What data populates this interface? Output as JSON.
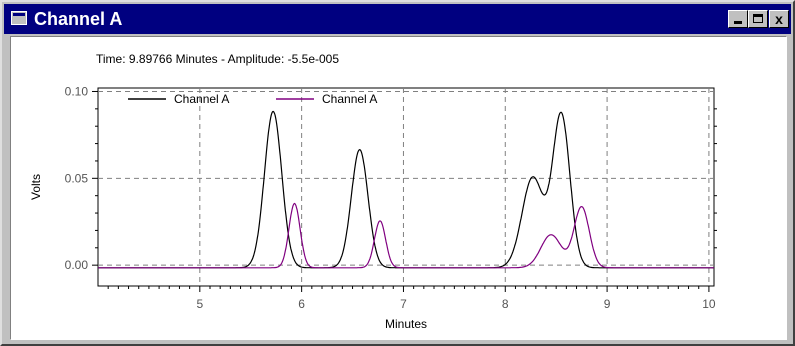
{
  "window": {
    "title": "Channel A",
    "minimize_icon": "minimize-icon",
    "maximize_icon": "maximize-icon",
    "close_icon": "close-icon",
    "close_label": "x"
  },
  "readout": "Time:  9.89766 Minutes - Amplitude:  -5.5e-005",
  "chart_data": {
    "type": "line",
    "xlabel": "Minutes",
    "ylabel": "Volts",
    "xlim": [
      4.0,
      10.05
    ],
    "ylim": [
      -0.012,
      0.102
    ],
    "xticks": [
      "5",
      "6",
      "7",
      "8",
      "9",
      "10"
    ],
    "yticks": [
      "0.00",
      "0.05",
      "0.10"
    ],
    "grid": true,
    "legend_position": "top-left",
    "series": [
      {
        "name": "Channel A",
        "color": "#000000",
        "baseline": -0.0015,
        "peaks": [
          [
            5.72,
            0.09,
            0.085
          ],
          [
            6.57,
            0.068,
            0.082
          ],
          [
            8.27,
            0.052,
            0.105
          ],
          [
            8.55,
            0.088,
            0.085
          ]
        ]
      },
      {
        "name": "Channel A",
        "color": "#800080",
        "baseline": -0.0015,
        "peaks": [
          [
            5.93,
            0.037,
            0.055
          ],
          [
            6.77,
            0.027,
            0.055
          ],
          [
            8.45,
            0.019,
            0.1
          ],
          [
            8.75,
            0.035,
            0.075
          ]
        ]
      }
    ]
  }
}
